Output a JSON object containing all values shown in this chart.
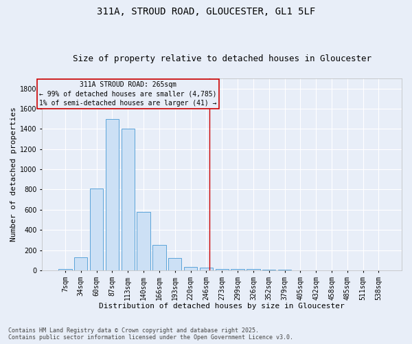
{
  "title_line1": "311A, STROUD ROAD, GLOUCESTER, GL1 5LF",
  "title_line2": "Size of property relative to detached houses in Gloucester",
  "xlabel": "Distribution of detached houses by size in Gloucester",
  "ylabel": "Number of detached properties",
  "categories": [
    "7sqm",
    "34sqm",
    "60sqm",
    "87sqm",
    "113sqm",
    "140sqm",
    "166sqm",
    "193sqm",
    "220sqm",
    "246sqm",
    "273sqm",
    "299sqm",
    "326sqm",
    "352sqm",
    "379sqm",
    "405sqm",
    "432sqm",
    "458sqm",
    "485sqm",
    "511sqm",
    "538sqm"
  ],
  "values": [
    10,
    130,
    810,
    1500,
    1400,
    580,
    250,
    120,
    35,
    25,
    15,
    15,
    10,
    5,
    5,
    3,
    2,
    2,
    2,
    1,
    1
  ],
  "bar_color": "#cce0f5",
  "bar_edge_color": "#5ba3d9",
  "vline_color": "#cc0000",
  "vline_x_index": 9,
  "annotation_text": "311A STROUD ROAD: 265sqm\n← 99% of detached houses are smaller (4,785)\n1% of semi-detached houses are larger (41) →",
  "annotation_box_color": "#cc0000",
  "ylim": [
    0,
    1900
  ],
  "yticks": [
    0,
    200,
    400,
    600,
    800,
    1000,
    1200,
    1400,
    1600,
    1800
  ],
  "background_color": "#e8eef8",
  "grid_color": "#ffffff",
  "footnote": "Contains HM Land Registry data © Crown copyright and database right 2025.\nContains public sector information licensed under the Open Government Licence v3.0.",
  "title_fontsize": 10,
  "subtitle_fontsize": 9,
  "label_fontsize": 8,
  "tick_fontsize": 7,
  "footnote_fontsize": 6,
  "annot_fontsize": 7
}
